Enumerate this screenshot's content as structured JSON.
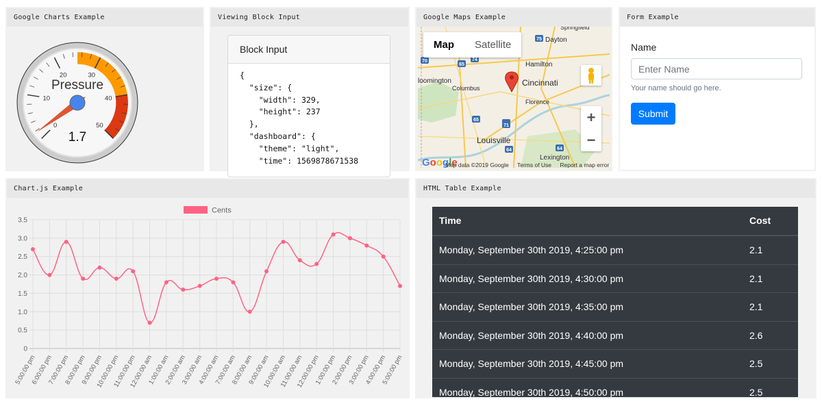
{
  "panels": {
    "gauge": {
      "title": "Google Charts Example"
    },
    "block": {
      "title": "Viewing Block Input"
    },
    "maps": {
      "title": "Google Maps Example"
    },
    "form": {
      "title": "Form Example"
    },
    "chartjs": {
      "title": "Chart.js Example"
    },
    "table": {
      "title": "HTML Table Example"
    }
  },
  "gauge": {
    "label": "Pressure",
    "value": 1.7,
    "value_text": "1.7",
    "min": 0,
    "max": 50,
    "ticks": [
      "0",
      "10",
      "20",
      "30",
      "40",
      "50"
    ],
    "yellow_range": [
      25,
      40
    ],
    "red_range": [
      40,
      50
    ],
    "colors": {
      "yellow": "#ff9900",
      "red": "#dc3912",
      "needle": "#dc3912",
      "hub": "#4684ee"
    }
  },
  "block": {
    "header": "Block Input",
    "code": "{\n  \"size\": {\n    \"width\": 329,\n    \"height\": 237\n  },\n  \"dashboard\": {\n    \"theme\": \"light\",\n    \"time\": 1569878671538"
  },
  "map": {
    "tab_map": "Map",
    "tab_satellite": "Satellite",
    "places": [
      "Springfield",
      "Dayton",
      "Hamilton",
      "Cincinnati",
      "Florence",
      "Columbus",
      "loomington",
      "Louisville",
      "Lexington"
    ],
    "highways": [
      "70",
      "65",
      "74",
      "75",
      "71",
      "65",
      "71",
      "64",
      "64"
    ],
    "zoom_in": "+",
    "zoom_out": "−",
    "footer": {
      "data": "Map data ©2019 Google",
      "terms": "Terms of Use",
      "report": "Report a map error"
    },
    "logo": "Google"
  },
  "form": {
    "label": "Name",
    "placeholder": "Enter Name",
    "help": "Your name should go here.",
    "submit": "Submit"
  },
  "chart_data": {
    "type": "line",
    "title": "",
    "legend": "Cents",
    "color": "#ff6384",
    "categories": [
      "5:00:00 pm",
      "6:00:00 pm",
      "7:00:00 pm",
      "8:00:00 pm",
      "9:00:00 pm",
      "10:00:00 pm",
      "11:00:00 pm",
      "12:00:00 am",
      "1:00:00 am",
      "2:00:00 am",
      "3:00:00 am",
      "4:00:00 am",
      "7:00:00 am",
      "8:00:00 am",
      "9:00:00 am",
      "10:00:00 am",
      "11:00:00 am",
      "12:00:00 pm",
      "1:00:00 pm",
      "2:00:00 pm",
      "3:00:00 pm",
      "4:00:00 pm",
      "5:00:00 pm"
    ],
    "values": [
      2.7,
      2.0,
      2.9,
      1.9,
      2.2,
      1.9,
      2.1,
      0.7,
      1.8,
      1.6,
      1.7,
      1.9,
      1.8,
      1.0,
      2.1,
      2.9,
      2.4,
      2.3,
      3.1,
      3.0,
      2.8,
      2.5,
      1.7
    ],
    "ylim": [
      0,
      3.5
    ],
    "yticks": [
      "0",
      "0.5",
      "1.0",
      "1.5",
      "2.0",
      "2.5",
      "3.0",
      "3.5"
    ],
    "xlabel": "",
    "ylabel": "",
    "grid": true,
    "legend_position": "top"
  },
  "table": {
    "headers": [
      "Time",
      "Cost"
    ],
    "rows": [
      [
        "Monday, September 30th 2019, 4:25:00 pm",
        "2.1"
      ],
      [
        "Monday, September 30th 2019, 4:30:00 pm",
        "2.1"
      ],
      [
        "Monday, September 30th 2019, 4:35:00 pm",
        "2.1"
      ],
      [
        "Monday, September 30th 2019, 4:40:00 pm",
        "2.6"
      ],
      [
        "Monday, September 30th 2019, 4:45:00 pm",
        "2.5"
      ],
      [
        "Monday, September 30th 2019, 4:50:00 pm",
        "2.5"
      ]
    ]
  }
}
